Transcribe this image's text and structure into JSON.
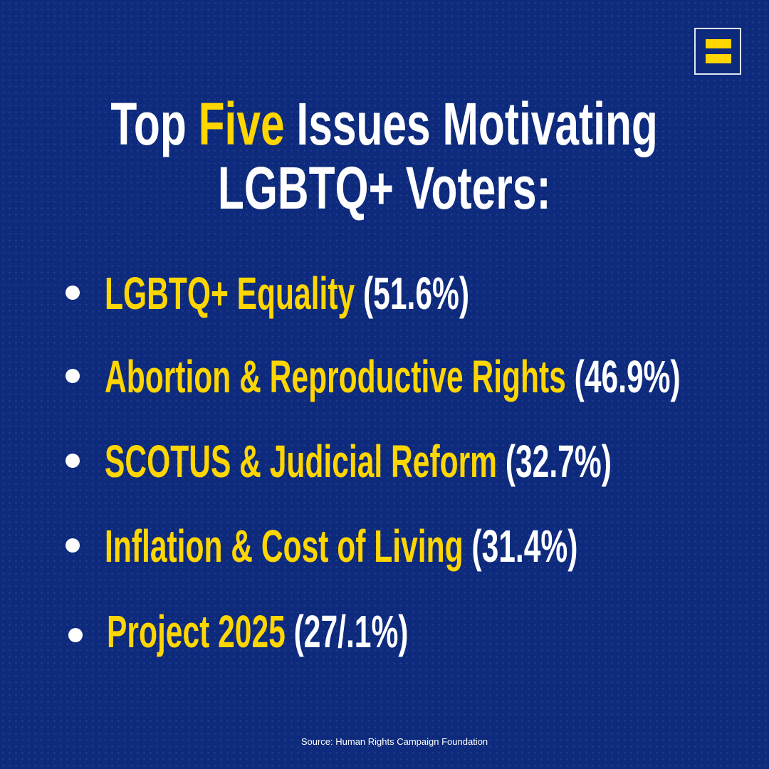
{
  "logo": {
    "name": "Human Rights Campaign equal sign logo",
    "colors": {
      "bars": "#ffd600",
      "border": "#dfe6f5"
    }
  },
  "title": {
    "line1_pre": "Top ",
    "line1_highlight": "Five",
    "line1_post": " Issues Motivating",
    "line2": "LGBTQ+ Voters:"
  },
  "items": [
    {
      "label": "LGBTQ+ Equality",
      "value": "(51.6%)"
    },
    {
      "label": "Abortion & Reproductive Rights",
      "value": "(46.9%)"
    },
    {
      "label": "SCOTUS & Judicial Reform",
      "value": "(32.7%)"
    },
    {
      "label": "Inflation & Cost of Living",
      "value": "(31.4%)"
    },
    {
      "label": "Project 2025",
      "value": "(27/.1%)"
    }
  ],
  "source": "Source: Human Rights Campaign Foundation",
  "colors": {
    "background": "#0d2a7c",
    "highlight": "#ffd600",
    "text": "#ffffff"
  }
}
